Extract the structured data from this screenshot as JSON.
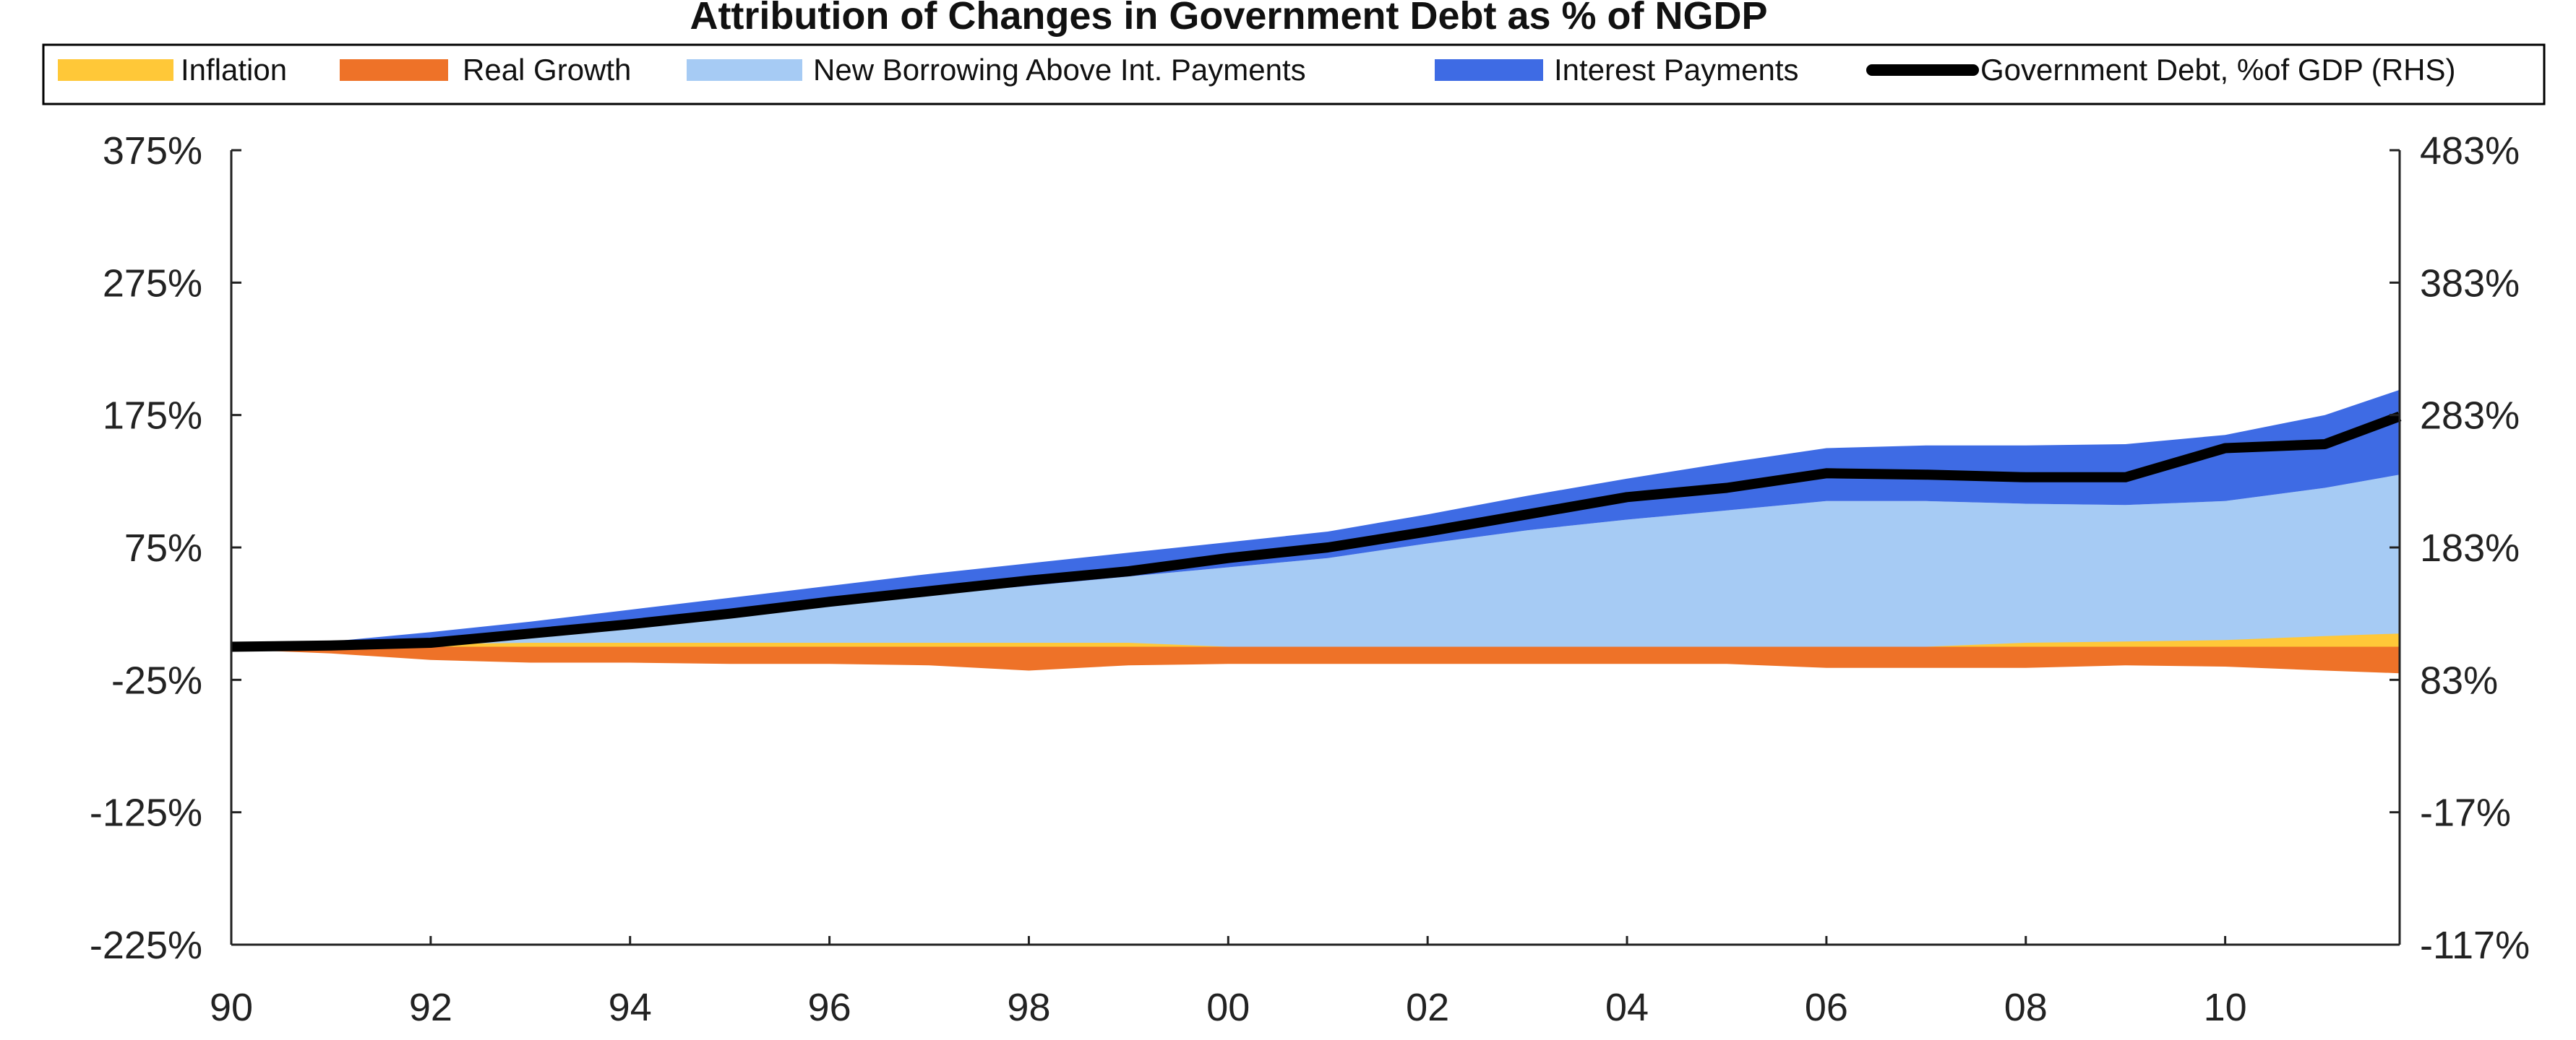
{
  "chart_data": {
    "type": "area",
    "title": "Attribution of Changes in Government Debt as % of NGDP",
    "legend_position": "top",
    "x_ticks": [
      "90",
      "92",
      "94",
      "96",
      "98",
      "00",
      "02",
      "04",
      "06",
      "08",
      "10"
    ],
    "x_tick_values": [
      1990,
      1992,
      1994,
      1996,
      1998,
      2000,
      2002,
      2004,
      2006,
      2008,
      2010
    ],
    "x_range": [
      1990,
      2011.75
    ],
    "x": [
      1990,
      1991,
      1992,
      1993,
      1994,
      1995,
      1996,
      1997,
      1998,
      1999,
      2000,
      2001,
      2002,
      2003,
      2004,
      2005,
      2006,
      2007,
      2008,
      2009,
      2010,
      2011,
      2011.75
    ],
    "y_left_ticks": [
      "375%",
      "275%",
      "175%",
      "75%",
      "-25%",
      "-125%",
      "-225%"
    ],
    "y_left_range": [
      -225,
      375
    ],
    "y_right_ticks": [
      "483%",
      "383%",
      "283%",
      "183%",
      "83%",
      "-17%",
      "-117%"
    ],
    "y_right_range": [
      -117,
      483
    ],
    "grid": false,
    "series": [
      {
        "name": "Inflation",
        "color": "#FFC838",
        "axis": "left",
        "values": [
          0,
          0,
          2,
          3,
          3,
          3,
          3,
          3,
          3,
          3,
          0,
          0,
          0,
          0,
          0,
          0,
          0,
          0,
          3,
          4,
          5,
          8,
          10
        ]
      },
      {
        "name": "Real Growth",
        "color": "#EE7228",
        "axis": "left",
        "values": [
          -2,
          -5,
          -10,
          -12,
          -12,
          -13,
          -13,
          -14,
          -18,
          -14,
          -13,
          -13,
          -13,
          -13,
          -13,
          -13,
          -16,
          -16,
          -16,
          -14,
          -15,
          -18,
          -20
        ]
      },
      {
        "name": "New Borrowing Above Int. Payments",
        "color": "#A6CBF4",
        "axis": "left",
        "values": [
          0,
          1,
          5,
          11,
          18,
          25,
          32,
          39,
          46,
          53,
          60,
          67,
          78,
          88,
          96,
          103,
          110,
          110,
          108,
          107,
          110,
          120,
          130
        ]
      },
      {
        "name": "Interest Payments",
        "color": "#3E6BE4",
        "axis": "left",
        "values": [
          0,
          3,
          6,
          8,
          10,
          12,
          14,
          16,
          17,
          18,
          19,
          20,
          22,
          26,
          31,
          36,
          40,
          42,
          44,
          46,
          50,
          55,
          64
        ]
      },
      {
        "name": "Government Debt, %of GDP (RHS)",
        "color": "#000000",
        "axis": "right",
        "values": [
          108,
          109,
          111,
          118,
          125,
          133,
          142,
          150,
          158,
          165,
          175,
          183,
          195,
          208,
          221,
          228,
          239,
          238,
          236,
          236,
          258,
          261,
          282
        ]
      }
    ]
  }
}
